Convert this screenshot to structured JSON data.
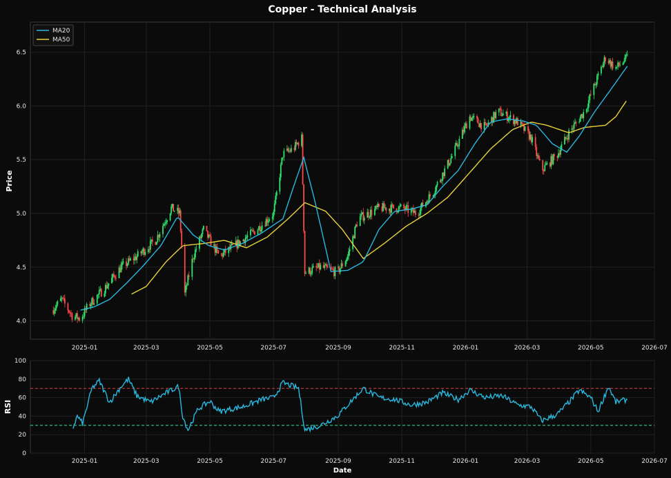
{
  "chart_data": [
    {
      "type": "candlestick",
      "title": "Copper - Technical Analysis",
      "ylabel": "Price",
      "ylim": [
        3.83,
        6.78
      ],
      "x_range": [
        "2024-11-10",
        "2026-07-01"
      ],
      "x_ticks": [
        "2025-01",
        "2025-03",
        "2025-05",
        "2025-07",
        "2025-09",
        "2025-11",
        "2026-01",
        "2026-03",
        "2026-05",
        "2026-07"
      ],
      "y_ticks": [
        "4.0",
        "4.5",
        "5.0",
        "5.5",
        "6.0",
        "6.5"
      ],
      "grid": true,
      "legend_position": "top-left",
      "legend": [
        "MA20",
        "MA50"
      ],
      "colors": {
        "up": "#2ee66b",
        "down": "#ff4a4a",
        "ma20": "#29b9e0",
        "ma50": "#e8d33a",
        "background": "#0b0b0b",
        "grid": "#2a2a2a",
        "text": "#e6e6e6"
      },
      "price_anchors": [
        [
          "2024-12-01",
          4.1
        ],
        [
          "2024-12-10",
          4.2
        ],
        [
          "2024-12-20",
          4.05
        ],
        [
          "2024-12-28",
          4.02
        ],
        [
          "2025-01-05",
          4.15
        ],
        [
          "2025-01-20",
          4.3
        ],
        [
          "2025-02-05",
          4.5
        ],
        [
          "2025-02-20",
          4.6
        ],
        [
          "2025-03-10",
          4.75
        ],
        [
          "2025-03-25",
          5.05
        ],
        [
          "2025-04-02",
          5.0
        ],
        [
          "2025-04-07",
          4.25
        ],
        [
          "2025-04-15",
          4.6
        ],
        [
          "2025-04-25",
          4.85
        ],
        [
          "2025-05-10",
          4.6
        ],
        [
          "2025-05-25",
          4.7
        ],
        [
          "2025-06-15",
          4.85
        ],
        [
          "2025-07-01",
          5.0
        ],
        [
          "2025-07-10",
          5.55
        ],
        [
          "2025-07-20",
          5.6
        ],
        [
          "2025-07-28",
          5.7
        ],
        [
          "2025-07-31",
          4.45
        ],
        [
          "2025-08-15",
          4.5
        ],
        [
          "2025-08-31",
          4.45
        ],
        [
          "2025-09-10",
          4.6
        ],
        [
          "2025-09-20",
          4.95
        ],
        [
          "2025-10-10",
          5.05
        ],
        [
          "2025-11-01",
          5.05
        ],
        [
          "2025-11-15",
          5.0
        ],
        [
          "2025-12-01",
          5.2
        ],
        [
          "2025-12-20",
          5.55
        ],
        [
          "2026-01-05",
          5.9
        ],
        [
          "2026-01-20",
          5.8
        ],
        [
          "2026-02-01",
          5.95
        ],
        [
          "2026-02-20",
          5.85
        ],
        [
          "2026-03-05",
          5.7
        ],
        [
          "2026-03-15",
          5.4
        ],
        [
          "2026-03-30",
          5.55
        ],
        [
          "2026-04-10",
          5.75
        ],
        [
          "2026-04-25",
          5.95
        ],
        [
          "2026-05-05",
          6.2
        ],
        [
          "2026-05-15",
          6.45
        ],
        [
          "2026-05-25",
          6.35
        ],
        [
          "2026-06-05",
          6.45
        ]
      ],
      "ma20_anchors": [
        [
          "2024-12-28",
          4.1
        ],
        [
          "2025-01-10",
          4.13
        ],
        [
          "2025-01-25",
          4.2
        ],
        [
          "2025-02-10",
          4.35
        ],
        [
          "2025-02-25",
          4.5
        ],
        [
          "2025-03-15",
          4.7
        ],
        [
          "2025-03-31",
          4.97
        ],
        [
          "2025-04-15",
          4.8
        ],
        [
          "2025-04-30",
          4.7
        ],
        [
          "2025-05-15",
          4.66
        ],
        [
          "2025-06-01",
          4.72
        ],
        [
          "2025-06-20",
          4.82
        ],
        [
          "2025-07-10",
          4.95
        ],
        [
          "2025-07-22",
          5.3
        ],
        [
          "2025-07-30",
          5.52
        ],
        [
          "2025-08-10",
          5.1
        ],
        [
          "2025-08-25",
          4.46
        ],
        [
          "2025-09-10",
          4.47
        ],
        [
          "2025-09-25",
          4.55
        ],
        [
          "2025-10-10",
          4.85
        ],
        [
          "2025-10-25",
          5.02
        ],
        [
          "2025-11-10",
          5.04
        ],
        [
          "2025-11-25",
          5.08
        ],
        [
          "2025-12-10",
          5.25
        ],
        [
          "2025-12-25",
          5.4
        ],
        [
          "2026-01-10",
          5.65
        ],
        [
          "2026-01-25",
          5.85
        ],
        [
          "2026-02-10",
          5.88
        ],
        [
          "2026-02-25",
          5.86
        ],
        [
          "2026-03-10",
          5.82
        ],
        [
          "2026-03-25",
          5.65
        ],
        [
          "2026-04-08",
          5.57
        ],
        [
          "2026-04-20",
          5.72
        ],
        [
          "2026-05-05",
          5.95
        ],
        [
          "2026-05-20",
          6.15
        ],
        [
          "2026-06-05",
          6.37
        ]
      ],
      "ma50_anchors": [
        [
          "2025-02-15",
          4.25
        ],
        [
          "2025-03-01",
          4.32
        ],
        [
          "2025-03-20",
          4.55
        ],
        [
          "2025-04-05",
          4.7
        ],
        [
          "2025-04-25",
          4.72
        ],
        [
          "2025-05-15",
          4.75
        ],
        [
          "2025-06-05",
          4.68
        ],
        [
          "2025-06-25",
          4.78
        ],
        [
          "2025-07-15",
          4.95
        ],
        [
          "2025-07-31",
          5.1
        ],
        [
          "2025-08-20",
          5.02
        ],
        [
          "2025-09-05",
          4.85
        ],
        [
          "2025-09-25",
          4.58
        ],
        [
          "2025-10-15",
          4.72
        ],
        [
          "2025-11-05",
          4.88
        ],
        [
          "2025-11-25",
          5.0
        ],
        [
          "2025-12-15",
          5.15
        ],
        [
          "2026-01-05",
          5.38
        ],
        [
          "2026-01-25",
          5.6
        ],
        [
          "2026-02-15",
          5.78
        ],
        [
          "2026-03-05",
          5.85
        ],
        [
          "2026-03-20",
          5.82
        ],
        [
          "2026-04-10",
          5.75
        ],
        [
          "2026-04-25",
          5.8
        ],
        [
          "2026-05-15",
          5.82
        ],
        [
          "2026-05-25",
          5.9
        ],
        [
          "2026-06-05",
          6.06
        ]
      ]
    },
    {
      "type": "line",
      "ylabel": "RSI",
      "xlabel": "Date",
      "ylim": [
        0,
        100
      ],
      "y_ticks": [
        "0",
        "20",
        "40",
        "60",
        "80",
        "100"
      ],
      "overbought": 70,
      "oversold": 30,
      "colors": {
        "rsi": "#29b9e0",
        "overbought": "#e04040",
        "oversold": "#2ee6a0"
      },
      "rsi_anchors": [
        [
          "2024-12-21",
          28
        ],
        [
          "2024-12-25",
          40
        ],
        [
          "2024-12-30",
          32
        ],
        [
          "2025-01-08",
          70
        ],
        [
          "2025-01-15",
          78
        ],
        [
          "2025-01-25",
          55
        ],
        [
          "2025-02-05",
          72
        ],
        [
          "2025-02-12",
          80
        ],
        [
          "2025-02-20",
          62
        ],
        [
          "2025-03-05",
          55
        ],
        [
          "2025-03-20",
          65
        ],
        [
          "2025-04-01",
          72
        ],
        [
          "2025-04-05",
          40
        ],
        [
          "2025-04-10",
          25
        ],
        [
          "2025-04-20",
          48
        ],
        [
          "2025-05-01",
          56
        ],
        [
          "2025-05-10",
          45
        ],
        [
          "2025-06-01",
          50
        ],
        [
          "2025-06-20",
          58
        ],
        [
          "2025-07-01",
          60
        ],
        [
          "2025-07-10",
          76
        ],
        [
          "2025-07-25",
          70
        ],
        [
          "2025-07-31",
          25
        ],
        [
          "2025-08-15",
          30
        ],
        [
          "2025-08-31",
          40
        ],
        [
          "2025-09-15",
          58
        ],
        [
          "2025-09-25",
          70
        ],
        [
          "2025-10-10",
          60
        ],
        [
          "2025-10-25",
          58
        ],
        [
          "2025-11-10",
          52
        ],
        [
          "2025-11-25",
          55
        ],
        [
          "2025-12-10",
          65
        ],
        [
          "2025-12-25",
          58
        ],
        [
          "2026-01-05",
          68
        ],
        [
          "2026-01-20",
          60
        ],
        [
          "2026-02-05",
          62
        ],
        [
          "2026-02-20",
          52
        ],
        [
          "2026-03-05",
          50
        ],
        [
          "2026-03-15",
          35
        ],
        [
          "2026-03-30",
          42
        ],
        [
          "2026-04-10",
          55
        ],
        [
          "2026-04-20",
          68
        ],
        [
          "2026-05-01",
          60
        ],
        [
          "2026-05-08",
          45
        ],
        [
          "2026-05-18",
          72
        ],
        [
          "2026-05-25",
          55
        ],
        [
          "2026-06-05",
          58
        ]
      ]
    }
  ]
}
